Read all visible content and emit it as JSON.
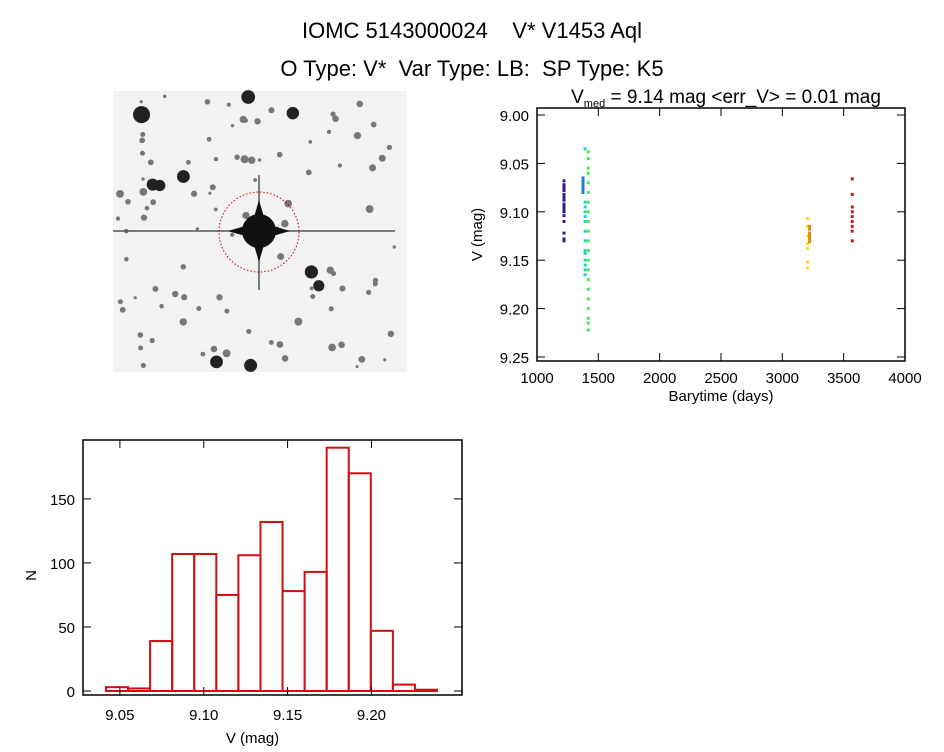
{
  "header": {
    "title": "IOMC 5143000024    V* V1453 Aql",
    "subtitle": "O Type: V*  Var Type: LB:  SP Type: K5"
  },
  "image_panel": {
    "description_icon": "sky-image-icon"
  },
  "chart_data": [
    {
      "type": "scatter",
      "title_prefix": "V",
      "title_subscript": "med",
      "title_rest": " = 9.14 mag <err_V> = 0.01 mag",
      "xlabel": "Barytime (days)",
      "ylabel": "V (mag)",
      "xlim": [
        1000,
        4000
      ],
      "ylim": [
        9.25,
        9.0
      ],
      "y_inverted": true,
      "xticks": [
        "1000",
        "1500",
        "2000",
        "2500",
        "3000",
        "3500",
        "4000"
      ],
      "yticks": [
        "9.00",
        "9.05",
        "9.10",
        "9.15",
        "9.20",
        "9.25"
      ],
      "series": [
        {
          "color": "#2a1a8c",
          "x": 1220,
          "y": [
            9.068,
            9.072,
            9.075,
            9.078,
            9.082,
            9.085,
            9.088,
            9.092,
            9.095,
            9.098,
            9.1,
            9.104,
            9.11,
            9.122,
            9.128,
            9.13
          ]
        },
        {
          "color": "#1e7fd0",
          "x": 1375,
          "y": [
            9.065,
            9.068,
            9.07,
            9.072,
            9.075,
            9.078,
            9.08
          ]
        },
        {
          "color": "#1fd6c0",
          "x": 1392,
          "y": [
            9.035,
            9.09,
            9.095,
            9.1,
            9.105,
            9.11,
            9.12,
            9.13,
            9.14,
            9.143,
            9.15,
            9.155,
            9.16,
            9.165
          ]
        },
        {
          "color": "#4de84d",
          "x": 1418,
          "y": [
            9.038,
            9.045,
            9.055,
            9.06,
            9.07,
            9.08,
            9.09,
            9.1,
            9.11,
            9.12,
            9.13,
            9.14,
            9.15,
            9.16,
            9.17,
            9.18,
            9.19,
            9.2,
            9.21,
            9.215,
            9.222
          ]
        },
        {
          "color": "#f0e020",
          "x": 3205,
          "y": [
            9.107,
            9.115,
            9.125,
            9.133,
            9.138,
            9.152,
            9.158
          ]
        },
        {
          "color": "#e08a10",
          "x": 3222,
          "y": [
            9.115,
            9.118,
            9.122,
            9.125,
            9.128,
            9.131
          ]
        },
        {
          "color": "#b22222",
          "x": 3570,
          "y": [
            9.066,
            9.082,
            9.095,
            9.1,
            9.105,
            9.11,
            9.115,
            9.12,
            9.13
          ]
        }
      ]
    },
    {
      "type": "bar",
      "subtype": "histogram",
      "xlabel": "V (mag)",
      "ylabel": "N",
      "xlim": [
        9.028,
        9.254
      ],
      "ylim": [
        0,
        196
      ],
      "xticks": [
        "9.05",
        "9.10",
        "9.15",
        "9.20"
      ],
      "yticks": [
        "0",
        "50",
        "100",
        "150"
      ],
      "bin_start": 9.0417,
      "bin_width": 0.01316,
      "values": [
        3,
        2,
        39,
        107,
        107,
        75,
        106,
        132,
        78,
        93,
        190,
        170,
        47,
        5,
        1
      ],
      "color": "#d01010"
    }
  ]
}
